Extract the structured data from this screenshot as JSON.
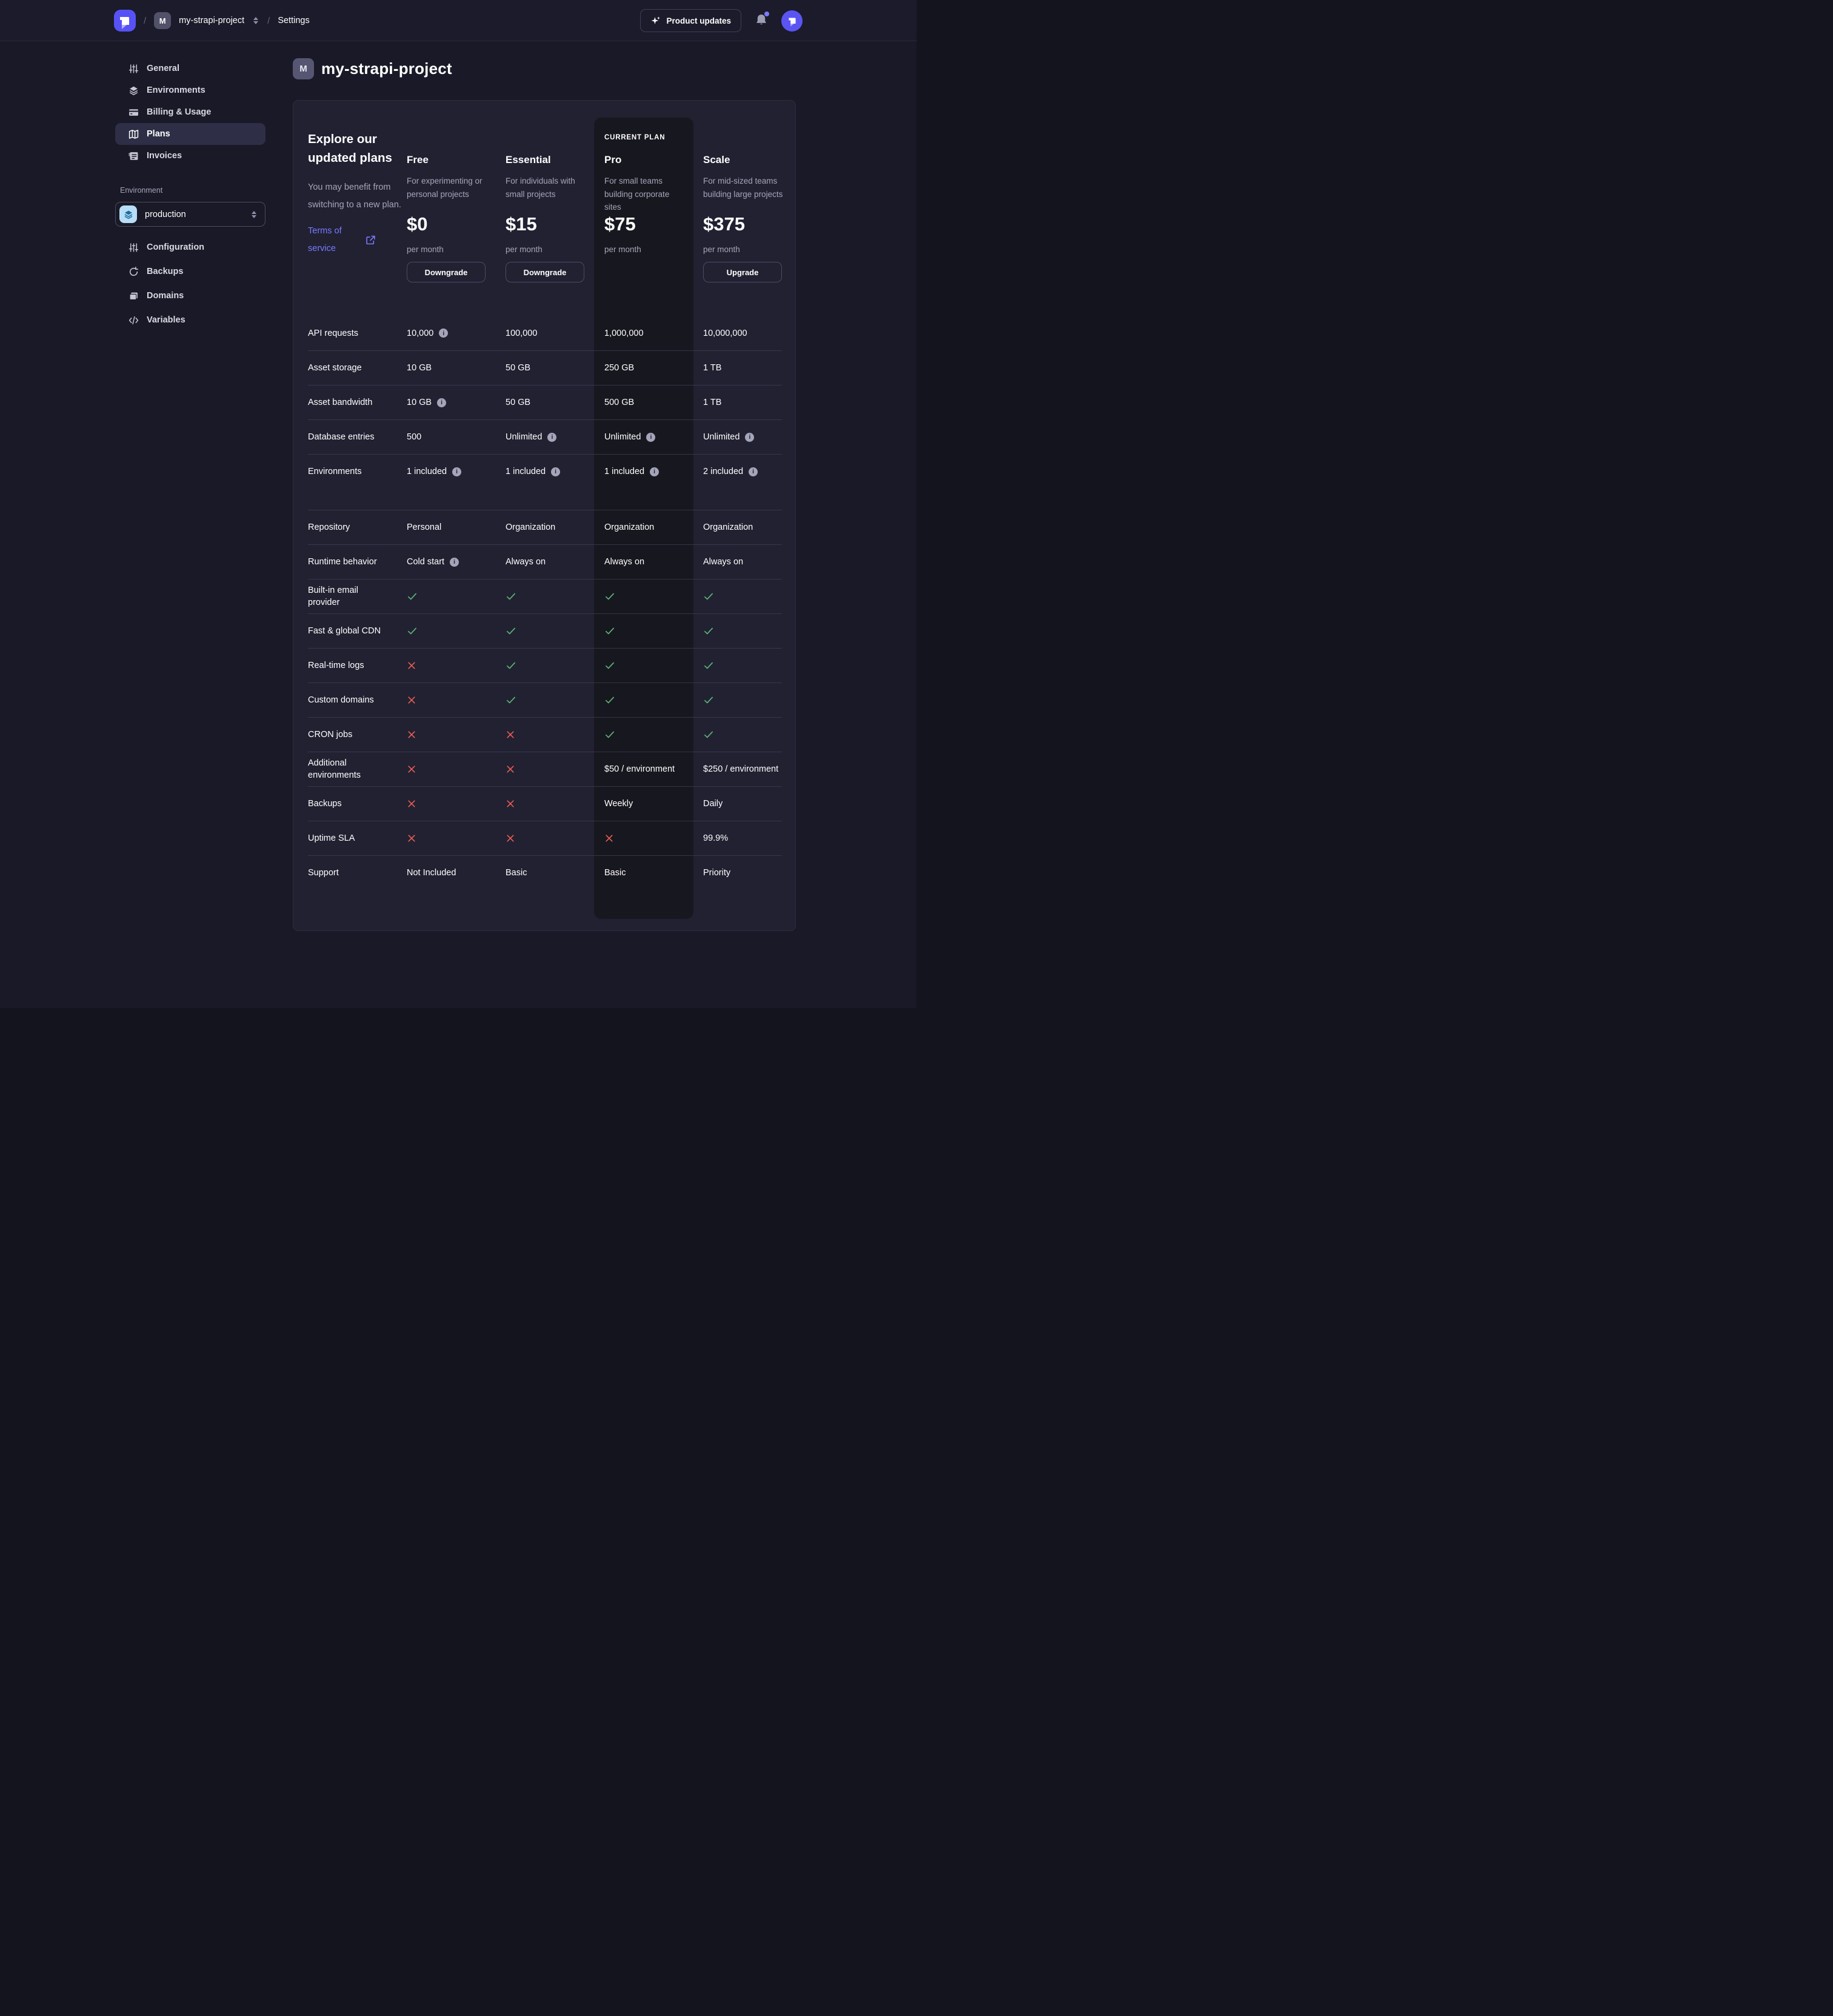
{
  "navbar": {
    "breadcrumb": {
      "separator": "/",
      "project_initial": "M",
      "project_name": "my-strapi-project",
      "settings_label": "Settings"
    },
    "product_updates_label": "Product updates"
  },
  "sidebar": {
    "items": [
      {
        "label": "General"
      },
      {
        "label": "Environments"
      },
      {
        "label": "Billing & Usage"
      },
      {
        "label": "Plans"
      },
      {
        "label": "Invoices"
      }
    ],
    "active_item": "Plans",
    "environment_section_label": "Environment",
    "environment_select_value": "production",
    "environment_items": [
      {
        "label": "Configuration"
      },
      {
        "label": "Backups"
      },
      {
        "label": "Domains"
      },
      {
        "label": "Variables"
      }
    ]
  },
  "main": {
    "project_initial": "M",
    "title": "my-strapi-project",
    "intro": {
      "heading": "Explore our updated plans",
      "subheading": "You may benefit from switching to a new plan.",
      "terms_link_label": "Terms of service"
    },
    "current_plan_label": "CURRENT PLAN",
    "plans": [
      {
        "name": "Free",
        "description": "For experimenting or personal projects",
        "price": "$0",
        "period": "per month",
        "action": "Downgrade",
        "current": false
      },
      {
        "name": "Essential",
        "description": "For individuals with small projects",
        "price": "$15",
        "period": "per month",
        "action": "Downgrade",
        "current": false
      },
      {
        "name": "Pro",
        "description": "For small teams building corporate sites",
        "price": "$75",
        "period": "per month",
        "action": null,
        "current": true
      },
      {
        "name": "Scale",
        "description": "For mid-sized teams building large projects",
        "price": "$375",
        "period": "per month",
        "action": "Upgrade",
        "current": false
      }
    ],
    "features": [
      {
        "label": "API requests",
        "cells": [
          {
            "type": "text",
            "text": "10,000",
            "info": true
          },
          {
            "type": "text",
            "text": "100,000"
          },
          {
            "type": "text",
            "text": "1,000,000"
          },
          {
            "type": "text",
            "text": "10,000,000"
          }
        ]
      },
      {
        "label": "Asset storage",
        "cells": [
          {
            "type": "text",
            "text": "10 GB"
          },
          {
            "type": "text",
            "text": "50 GB"
          },
          {
            "type": "text",
            "text": "250 GB"
          },
          {
            "type": "text",
            "text": "1 TB"
          }
        ]
      },
      {
        "label": "Asset bandwidth",
        "cells": [
          {
            "type": "text",
            "text": "10 GB",
            "info": true
          },
          {
            "type": "text",
            "text": "50 GB"
          },
          {
            "type": "text",
            "text": "500 GB"
          },
          {
            "type": "text",
            "text": "1 TB"
          }
        ]
      },
      {
        "label": "Database entries",
        "cells": [
          {
            "type": "text",
            "text": "500"
          },
          {
            "type": "text",
            "text": "Unlimited",
            "info": true
          },
          {
            "type": "text",
            "text": "Unlimited",
            "info": true
          },
          {
            "type": "text",
            "text": "Unlimited",
            "info": true
          }
        ]
      },
      {
        "label": "Environments",
        "gap_after": true,
        "cells": [
          {
            "type": "text",
            "text": "1 included",
            "info": true
          },
          {
            "type": "text",
            "text": "1 included",
            "info": true
          },
          {
            "type": "text",
            "text": "1 included",
            "info": true
          },
          {
            "type": "text",
            "text": "2 included",
            "info": true
          }
        ]
      },
      {
        "label": "Repository",
        "cells": [
          {
            "type": "text",
            "text": "Personal"
          },
          {
            "type": "text",
            "text": "Organization"
          },
          {
            "type": "text",
            "text": "Organization"
          },
          {
            "type": "text",
            "text": "Organization"
          }
        ]
      },
      {
        "label": "Runtime behavior",
        "cells": [
          {
            "type": "text",
            "text": "Cold start",
            "info": true
          },
          {
            "type": "text",
            "text": "Always on"
          },
          {
            "type": "text",
            "text": "Always on"
          },
          {
            "type": "text",
            "text": "Always on"
          }
        ]
      },
      {
        "label": "Built-in email provider",
        "cells": [
          {
            "type": "check"
          },
          {
            "type": "check"
          },
          {
            "type": "check"
          },
          {
            "type": "check"
          }
        ]
      },
      {
        "label": "Fast & global CDN",
        "cells": [
          {
            "type": "check"
          },
          {
            "type": "check"
          },
          {
            "type": "check"
          },
          {
            "type": "check"
          }
        ]
      },
      {
        "label": "Real-time logs",
        "cells": [
          {
            "type": "cross"
          },
          {
            "type": "check"
          },
          {
            "type": "check"
          },
          {
            "type": "check"
          }
        ]
      },
      {
        "label": "Custom domains",
        "cells": [
          {
            "type": "cross"
          },
          {
            "type": "check"
          },
          {
            "type": "check"
          },
          {
            "type": "check"
          }
        ]
      },
      {
        "label": "CRON jobs",
        "cells": [
          {
            "type": "cross"
          },
          {
            "type": "cross"
          },
          {
            "type": "check"
          },
          {
            "type": "check"
          }
        ]
      },
      {
        "label": "Additional environments",
        "cells": [
          {
            "type": "cross"
          },
          {
            "type": "cross"
          },
          {
            "type": "text",
            "text": "$50 / environment"
          },
          {
            "type": "text",
            "text": "$250 / environment"
          }
        ]
      },
      {
        "label": "Backups",
        "cells": [
          {
            "type": "cross"
          },
          {
            "type": "cross"
          },
          {
            "type": "text",
            "text": "Weekly"
          },
          {
            "type": "text",
            "text": "Daily"
          }
        ]
      },
      {
        "label": "Uptime SLA",
        "cells": [
          {
            "type": "cross"
          },
          {
            "type": "cross"
          },
          {
            "type": "cross"
          },
          {
            "type": "text",
            "text": "99.9%"
          }
        ]
      },
      {
        "label": "Support",
        "cells": [
          {
            "type": "text",
            "text": "Not Included"
          },
          {
            "type": "text",
            "text": "Basic"
          },
          {
            "type": "text",
            "text": "Basic"
          },
          {
            "type": "text",
            "text": "Priority"
          }
        ]
      }
    ]
  },
  "colors": {
    "accent_purple": "#5752f5",
    "link_purple": "#7b79ff",
    "success_green": "#5cb176",
    "danger_red": "#ee5e52",
    "panel_bg": "#212132",
    "page_bg": "#191927",
    "current_plan_band": "#17171f"
  }
}
